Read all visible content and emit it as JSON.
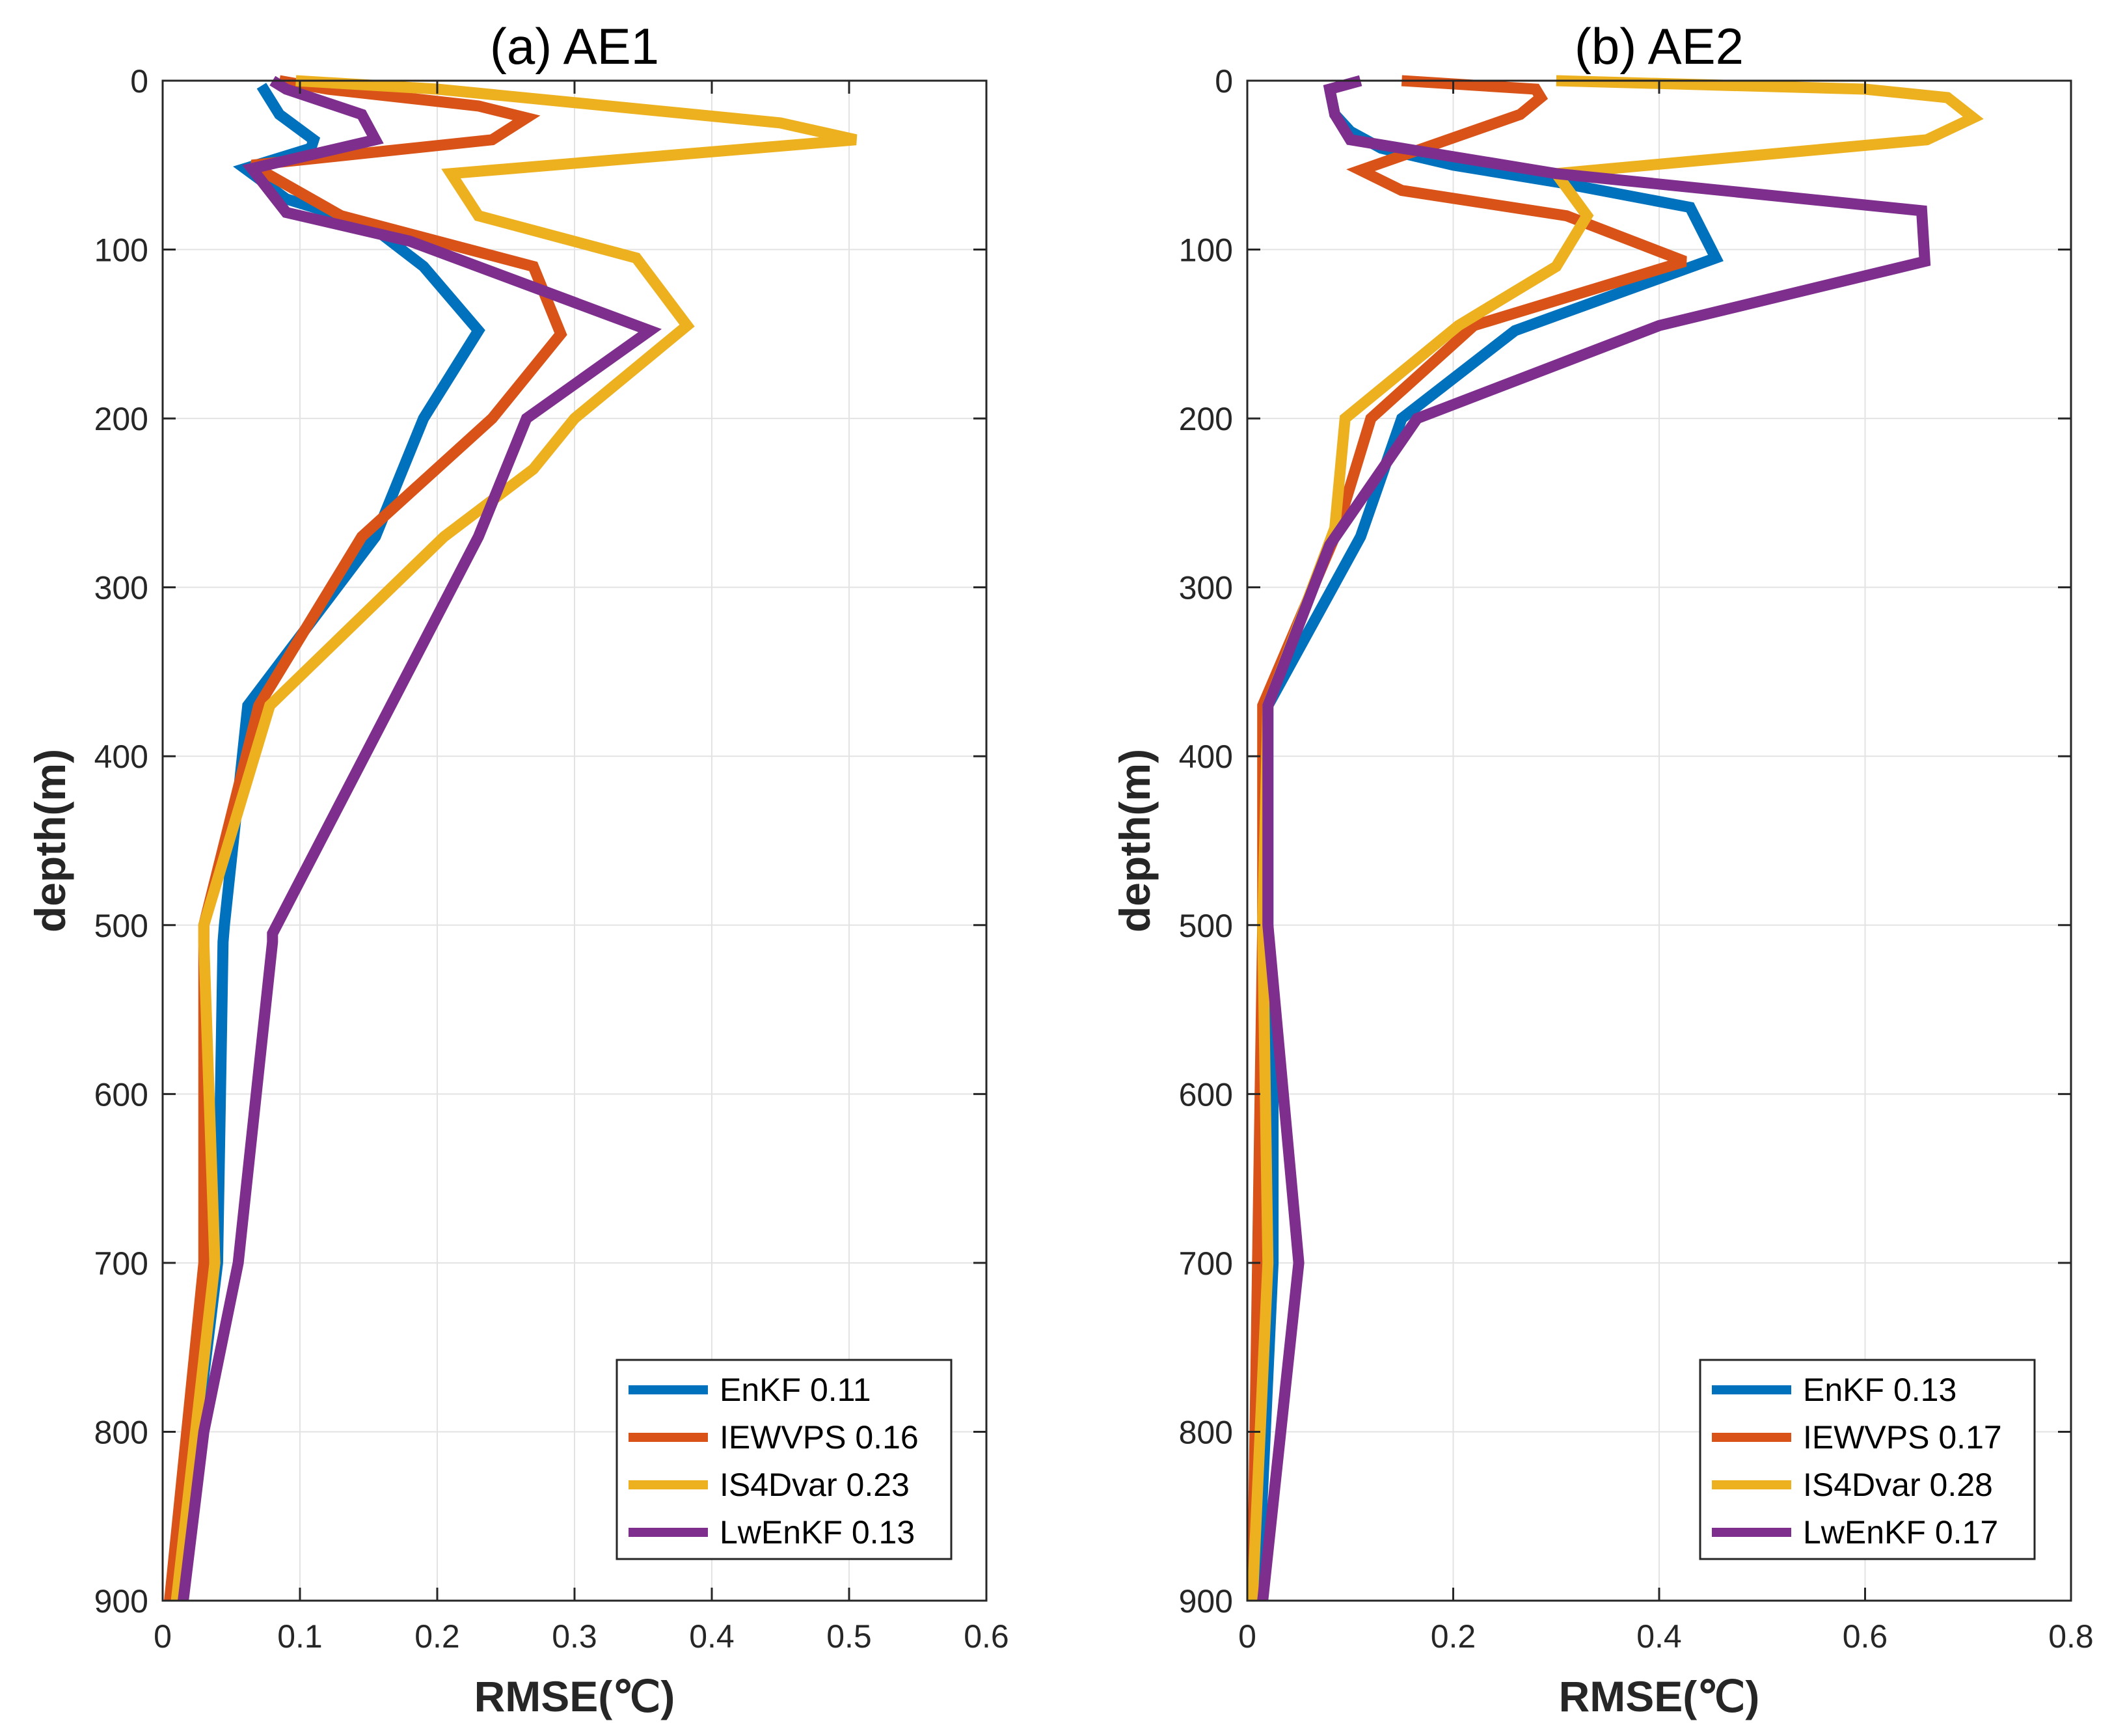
{
  "chart_data": [
    {
      "type": "line",
      "title": "(a) AE1",
      "xlabel": "RMSE(℃)",
      "ylabel": "depth(m)",
      "xlim": [
        0,
        0.6
      ],
      "ylim": [
        0,
        900
      ],
      "y_reversed": true,
      "grid": true,
      "xticks": [
        0,
        0.1,
        0.2,
        0.3,
        0.4,
        0.5,
        0.6
      ],
      "xtick_labels": [
        "0",
        "0.1",
        "0.2",
        "0.3",
        "0.4",
        "0.5",
        "0.6"
      ],
      "yticks": [
        0,
        100,
        200,
        300,
        400,
        500,
        600,
        700,
        800,
        900
      ],
      "ytick_labels": [
        "0",
        "100",
        "200",
        "300",
        "400",
        "500",
        "600",
        "700",
        "800",
        "900"
      ],
      "legend_position": "bottom-right",
      "series": [
        {
          "name": "EnKF",
          "legend": "EnKF 0.11",
          "color": "#0072BD",
          "x": [
            0.072,
            0.085,
            0.11,
            0.108,
            0.06,
            0.09,
            0.15,
            0.19,
            0.23,
            0.19,
            0.155,
            0.062,
            0.045,
            0.044,
            0.04,
            0.025,
            0.012
          ],
          "y": [
            3,
            20,
            35,
            40,
            52,
            70,
            85,
            110,
            148,
            200,
            270,
            370,
            500,
            510,
            700,
            800,
            900
          ]
        },
        {
          "name": "IEWVPS",
          "legend": "IEWVPS 0.16",
          "color": "#D95319",
          "x": [
            0.085,
            0.12,
            0.23,
            0.265,
            0.24,
            0.065,
            0.13,
            0.27,
            0.29,
            0.24,
            0.145,
            0.07,
            0.03,
            0.03,
            0.03,
            0.005
          ],
          "y": [
            0,
            5,
            15,
            22,
            35,
            50,
            80,
            110,
            150,
            200,
            270,
            370,
            500,
            510,
            700,
            900
          ]
        },
        {
          "name": "IS4Dvar",
          "legend": "IS4Dvar 0.23",
          "color": "#EDB120",
          "x": [
            0.097,
            0.2,
            0.45,
            0.505,
            0.21,
            0.23,
            0.345,
            0.382,
            0.3,
            0.27,
            0.205,
            0.078,
            0.03,
            0.03,
            0.038,
            0.01
          ],
          "y": [
            0,
            5,
            25,
            35,
            55,
            80,
            105,
            145,
            200,
            230,
            270,
            370,
            500,
            510,
            700,
            900
          ]
        },
        {
          "name": "LwEnKF",
          "legend": "LwEnKF 0.13",
          "color": "#7E2F8E",
          "x": [
            0.08,
            0.09,
            0.145,
            0.155,
            0.065,
            0.09,
            0.18,
            0.355,
            0.265,
            0.23,
            0.08,
            0.08,
            0.055,
            0.03,
            0.015
          ],
          "y": [
            0,
            5,
            20,
            35,
            52,
            78,
            95,
            148,
            200,
            270,
            505,
            510,
            700,
            800,
            900
          ]
        }
      ]
    },
    {
      "type": "line",
      "title": "(b) AE2",
      "xlabel": "RMSE(℃)",
      "ylabel": "depth(m)",
      "xlim": [
        0,
        0.8
      ],
      "ylim": [
        0,
        900
      ],
      "y_reversed": true,
      "grid": true,
      "xticks": [
        0,
        0.2,
        0.4,
        0.6,
        0.8
      ],
      "xtick_labels": [
        "0",
        "0.2",
        "0.4",
        "0.6",
        "0.8"
      ],
      "yticks": [
        0,
        100,
        200,
        300,
        400,
        500,
        600,
        700,
        800,
        900
      ],
      "ytick_labels": [
        "0",
        "100",
        "200",
        "300",
        "400",
        "500",
        "600",
        "700",
        "800",
        "900"
      ],
      "legend_position": "bottom-right",
      "series": [
        {
          "name": "EnKF",
          "legend": "EnKF 0.13",
          "color": "#0072BD",
          "x": [
            0.08,
            0.085,
            0.1,
            0.13,
            0.2,
            0.3,
            0.43,
            0.455,
            0.26,
            0.15,
            0.11,
            0.02,
            0.02,
            0.025,
            0.025,
            0.01
          ],
          "y": [
            5,
            20,
            30,
            40,
            50,
            60,
            75,
            105,
            148,
            200,
            270,
            370,
            500,
            600,
            700,
            900
          ]
        },
        {
          "name": "IEWVPS",
          "legend": "IEWVPS 0.17",
          "color": "#D95319",
          "x": [
            0.15,
            0.28,
            0.285,
            0.265,
            0.11,
            0.15,
            0.31,
            0.425,
            0.22,
            0.12,
            0.085,
            0.015,
            0.015,
            0.01,
            0.005
          ],
          "y": [
            0,
            5,
            10,
            20,
            53,
            65,
            80,
            107,
            145,
            200,
            270,
            370,
            500,
            700,
            900
          ]
        },
        {
          "name": "IS4Dvar",
          "legend": "IS4Dvar 0.28",
          "color": "#EDB120",
          "x": [
            0.3,
            0.6,
            0.68,
            0.705,
            0.66,
            0.3,
            0.33,
            0.3,
            0.205,
            0.095,
            0.085,
            0.02,
            0.015,
            0.02,
            0.005
          ],
          "y": [
            0,
            5,
            10,
            22,
            35,
            55,
            80,
            110,
            145,
            200,
            265,
            370,
            500,
            700,
            900
          ]
        },
        {
          "name": "LwEnKF",
          "legend": "LwEnKF 0.17",
          "color": "#7E2F8E",
          "x": [
            0.11,
            0.08,
            0.085,
            0.1,
            0.3,
            0.655,
            0.658,
            0.4,
            0.165,
            0.08,
            0.02,
            0.02,
            0.05,
            0.015
          ],
          "y": [
            0,
            5,
            20,
            35,
            55,
            77,
            107,
            145,
            200,
            275,
            370,
            500,
            700,
            900
          ]
        }
      ]
    }
  ]
}
